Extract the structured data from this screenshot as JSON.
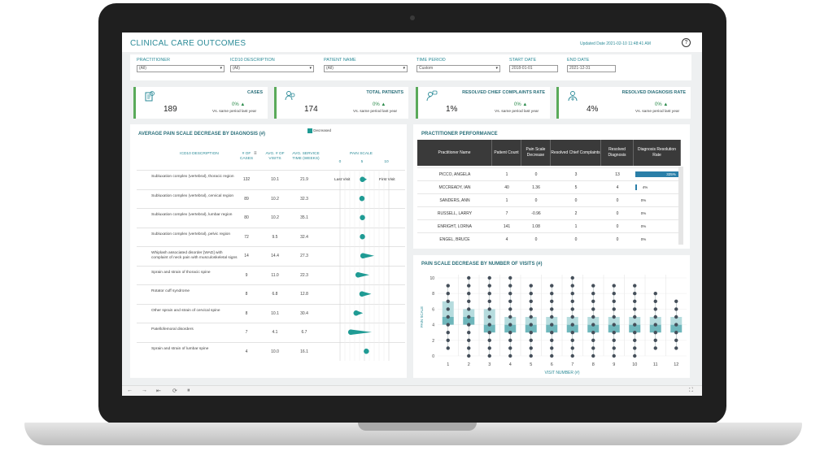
{
  "header": {
    "title": "CLINICAL CARE OUTCOMES",
    "updated": "Updated Date 2021-02-10 11:48:41 AM"
  },
  "filters": [
    {
      "label": "PRACTITIONER",
      "value": "(All)"
    },
    {
      "label": "ICD10 DESCRIPTION",
      "value": "(All)"
    },
    {
      "label": "PATIENT NAME",
      "value": "(All)"
    },
    {
      "label": "TIME PERIOD",
      "value": "Custom"
    },
    {
      "label": "START DATE",
      "value": "2018-01-01"
    },
    {
      "label": "END DATE",
      "value": "2021-12-31"
    }
  ],
  "kpis": [
    {
      "title": "CASES",
      "value": "189",
      "pct": "0%",
      "sub": "Vs. same period last year",
      "icon": "medical-chart-icon"
    },
    {
      "title": "TOTAL PATIENTS",
      "value": "174",
      "pct": "0%",
      "sub": "Vs. same period last year",
      "icon": "patients-icon"
    },
    {
      "title": "RESOLVED CHIEF COMPLAINTS RATE",
      "value": "1%",
      "pct": "0%",
      "sub": "Vs. same period last year",
      "icon": "complaints-icon"
    },
    {
      "title": "RESOLVED DIAGNOSIS RATE",
      "value": "4%",
      "pct": "0%",
      "sub": "Vs. same period last year",
      "icon": "diagnosis-icon"
    }
  ],
  "colors": {
    "accent": "#2a8a97",
    "green": "#5aaa5a",
    "teal_mark": "#1f9b94",
    "dot": "#454f5a"
  },
  "diagnosis_panel": {
    "title": "AVERAGE PAIN SCALE DECREASE BY DIAGNOSIS (#)",
    "legend": "Decreased",
    "headers": {
      "desc": "ICD10 DESCRIPTION",
      "cases": "# OF CASES",
      "visits": "AVG. # OF VISITS",
      "time": "AVG. SERVICE TIME (WEEKS)",
      "pain": "PAIN SCALE"
    },
    "pain_ticks": [
      "0",
      "5",
      "10"
    ],
    "annot_last": "Last Visit",
    "annot_first": "First Visit",
    "rows": [
      {
        "desc": "Subluxation complex (vertebral), thoracic region",
        "cases": "132",
        "visits": "10.1",
        "time": "21.9",
        "first": 5.5,
        "last": 4.6
      },
      {
        "desc": "Subluxation complex (vertebral), cervical region",
        "cases": "89",
        "visits": "10.2",
        "time": "32.3",
        "first": 5.0,
        "last": 4.5
      },
      {
        "desc": "Subluxation complex (vertebral), lumbar region",
        "cases": "80",
        "visits": "10.2",
        "time": "35.1",
        "first": 5.0,
        "last": 4.6
      },
      {
        "desc": "Subluxation complex (vertebral), pelvic region",
        "cases": "72",
        "visits": "9.5",
        "time": "32.4",
        "first": 5.0,
        "last": 4.6
      },
      {
        "desc": "Whiplash associated disorder [WAD] with complaint of neck pain with musculoskeletal signs",
        "cases": "14",
        "visits": "14.4",
        "time": "27.3",
        "first": 7.0,
        "last": 4.7
      },
      {
        "desc": "Sprain and strain of thoracic spine",
        "cases": "9",
        "visits": "11.0",
        "time": "22.3",
        "first": 6.0,
        "last": 3.7
      },
      {
        "desc": "Rotator cuff syndrome",
        "cases": "8",
        "visits": "6.8",
        "time": "12.8",
        "first": 6.4,
        "last": 4.5
      },
      {
        "desc": "Other sprain and strain of cervical spine",
        "cases": "8",
        "visits": "10.1",
        "time": "30.4",
        "first": 4.7,
        "last": 3.3
      },
      {
        "desc": "Patellofemoral disorders",
        "cases": "7",
        "visits": "4.1",
        "time": "6.7",
        "first": 6.5,
        "last": 2.2
      },
      {
        "desc": "Sprain and strain of lumbar spine",
        "cases": "4",
        "visits": "10.0",
        "time": "16.1",
        "first": 5.6,
        "last": 5.4
      }
    ]
  },
  "practitioner_panel": {
    "title": "PRACTITIONER PERFORMANCE",
    "headers": [
      "Practitioner Name",
      "Patient Count",
      "Pain Scale Decrease",
      "Resolved Chief Complaints",
      "Resolved Diagnosis",
      "Diagnosis Resolution Rate"
    ],
    "rows": [
      {
        "name": "PICCO, ANGELA",
        "patients": "1",
        "decrease": "0",
        "complaints": "3",
        "diagnosis": "13",
        "rate": "325%",
        "rate_value": 3.25
      },
      {
        "name": "MCCREADY, IAN",
        "patients": "40",
        "decrease": "1.36",
        "complaints": "5",
        "diagnosis": "4",
        "rate": "4%",
        "rate_value": 0.04
      },
      {
        "name": "SANDERS, ANN",
        "patients": "1",
        "decrease": "0",
        "complaints": "0",
        "diagnosis": "0",
        "rate": "0%",
        "rate_value": 0
      },
      {
        "name": "RUSSELL, LARRY",
        "patients": "7",
        "decrease": "-0.96",
        "complaints": "2",
        "diagnosis": "0",
        "rate": "0%",
        "rate_value": 0
      },
      {
        "name": "ENRIGHT, LORNA",
        "patients": "141",
        "decrease": "1.08",
        "complaints": "1",
        "diagnosis": "0",
        "rate": "0%",
        "rate_value": 0
      },
      {
        "name": "ENGEL, BRUCE",
        "patients": "4",
        "decrease": "0",
        "complaints": "0",
        "diagnosis": "0",
        "rate": "0%",
        "rate_value": 0
      }
    ]
  },
  "chart_data": {
    "type": "box",
    "title": "PAIN SCALE DECREASE BY NUMBER OF VISITS (#)",
    "xlabel": "VISIT NUMBER (#)",
    "ylabel": "PAIN SCALE",
    "categories": [
      "1",
      "2",
      "3",
      "4",
      "5",
      "6",
      "7",
      "8",
      "9",
      "10",
      "11",
      "12"
    ],
    "ylim": [
      0,
      10
    ],
    "yticks": [
      "0",
      "2",
      "4",
      "6",
      "8",
      "10"
    ],
    "boxes": [
      {
        "q1": 4,
        "median": 5,
        "q3": 7,
        "min": 1,
        "max": 9,
        "points": [
          1,
          2,
          3,
          4,
          5,
          6,
          7,
          8,
          9
        ]
      },
      {
        "q1": 4,
        "median": 5,
        "q3": 6,
        "min": 0,
        "max": 10,
        "points": [
          0,
          1,
          2,
          3,
          4,
          5,
          6,
          7,
          8,
          9,
          10
        ]
      },
      {
        "q1": 3,
        "median": 4,
        "q3": 6,
        "min": 0,
        "max": 10,
        "points": [
          0,
          1,
          2,
          3,
          4,
          5,
          6,
          7,
          8,
          9,
          10
        ]
      },
      {
        "q1": 3,
        "median": 4,
        "q3": 5,
        "min": 0,
        "max": 10,
        "points": [
          0,
          1,
          2,
          3,
          4,
          5,
          6,
          7,
          8,
          9,
          10
        ]
      },
      {
        "q1": 3,
        "median": 4,
        "q3": 5,
        "min": 0,
        "max": 9,
        "points": [
          0,
          1,
          2,
          3,
          4,
          5,
          6,
          7,
          8,
          9
        ]
      },
      {
        "q1": 3,
        "median": 4,
        "q3": 5,
        "min": 0,
        "max": 9,
        "points": [
          0,
          1,
          2,
          3,
          4,
          5,
          6,
          7,
          8,
          9
        ]
      },
      {
        "q1": 3,
        "median": 4,
        "q3": 5,
        "min": 0,
        "max": 10,
        "points": [
          0,
          1,
          2,
          3,
          4,
          5,
          6,
          7,
          8,
          9,
          10
        ]
      },
      {
        "q1": 3,
        "median": 4,
        "q3": 5,
        "min": 0,
        "max": 9,
        "points": [
          0,
          1,
          2,
          3,
          4,
          5,
          6,
          7,
          8,
          9
        ]
      },
      {
        "q1": 3,
        "median": 4,
        "q3": 5,
        "min": 0,
        "max": 9,
        "points": [
          0,
          1,
          2,
          3,
          4,
          5,
          6,
          7,
          8,
          9
        ]
      },
      {
        "q1": 3,
        "median": 4,
        "q3": 5,
        "min": 0,
        "max": 9,
        "points": [
          0,
          1,
          2,
          3,
          4,
          5,
          6,
          7,
          8,
          9
        ]
      },
      {
        "q1": 3,
        "median": 4,
        "q3": 5,
        "min": 1,
        "max": 8,
        "points": [
          1,
          2,
          3,
          4,
          5,
          6,
          7,
          8
        ]
      },
      {
        "q1": 3,
        "median": 4,
        "q3": 5,
        "min": 1,
        "max": 7,
        "points": [
          1,
          2,
          3,
          4,
          5,
          6,
          7
        ]
      }
    ]
  },
  "toolbar": {
    "icons": [
      "undo-icon",
      "redo-icon",
      "revert-icon",
      "refresh-icon",
      "pause-icon",
      "fullscreen-icon"
    ]
  }
}
